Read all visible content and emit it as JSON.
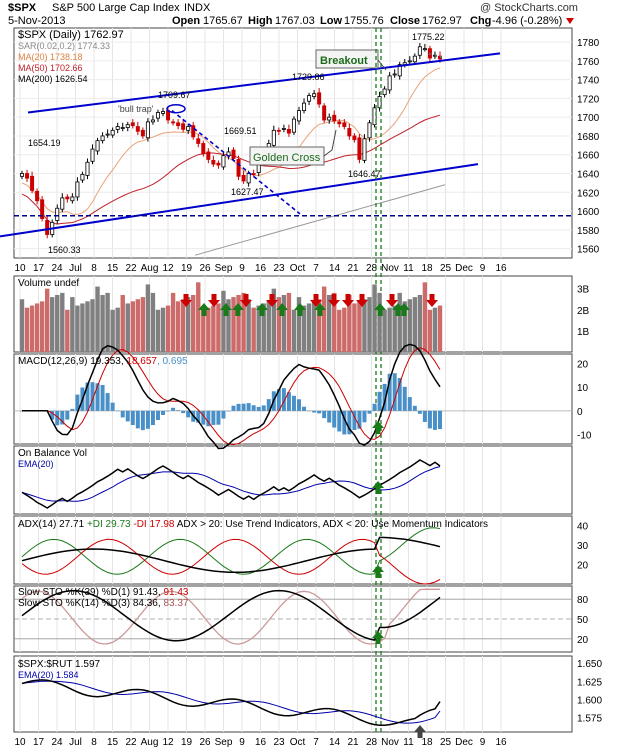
{
  "header": {
    "symbol": "$SPX",
    "name": "S&P 500 Large Cap Index",
    "exchange": "INDX",
    "date": "5-Nov-2013",
    "open_label": "Open",
    "open": "1765.67",
    "high_label": "High",
    "high": "1767.03",
    "low_label": "Low",
    "low": "1755.76",
    "close_label": "Close",
    "close": "1762.97",
    "chg_label": "Chg",
    "chg": "-4.96 (-0.28%)",
    "watermark": "@ StockCharts.com"
  },
  "legend": {
    "main": "$SPX (Daily) 1762.97",
    "sar": "SAR(0.02,0.2) 1774.33",
    "ma20": "MA(20) 1738.18",
    "ma50": "MA(50) 1702.66",
    "ma200": "MA(200) 1626.54",
    "volume": "Volume undef",
    "macd_a": "MACD(12,26,9) 19.353, ",
    "macd_b": "18.657",
    "macd_c": ", 0.695",
    "obv": "On Balance Vol",
    "obv_ema": "EMA(20)",
    "adx_a": "ADX(14) 27.71 ",
    "adx_b": "+DI 29.73 ",
    "adx_c": "-DI 17.98",
    "adx_d": " ADX > 20: Use Trend Indicators, ADX < 20: Use Momentum Indicators",
    "sto1_a": "Slow STO %K(39) %D(1) 91.43, ",
    "sto1_b": "91.43",
    "sto2_a": "Slow STO %K(14) %D(3) 84.36, ",
    "sto2_b": "83.37",
    "ratio": "$SPX:$RUT 1.597",
    "ratio_ema": "EMA(20) 1.584"
  },
  "annotations": {
    "breakout": "Breakout",
    "golden_cross": "Golden Cross",
    "bull_trap": "'bull trap'"
  },
  "colors": {
    "up": "#000000",
    "down": "#cc0000",
    "trend": "#0000cc",
    "ma20": "#e8a27a",
    "ma50": "#c0202a",
    "ma200": "#999999",
    "hist": "#4a90c8",
    "arrow_green": "#1a7a1a",
    "arrow_red": "#cc0000",
    "vol_up": "#808080",
    "vol_down": "#cd6b6b"
  },
  "chart_data": {
    "type": "candlestick",
    "x_ticks": [
      "10",
      "17",
      "24",
      "Jul",
      "8",
      "15",
      "22",
      "Aug",
      "12",
      "19",
      "26",
      "Sep",
      "9",
      "16",
      "23",
      "Oct",
      "7",
      "14",
      "21",
      "28",
      "Nov",
      "11",
      "18",
      "25",
      "Dec",
      "9",
      "16"
    ],
    "price_axis": [
      "1780",
      "1760",
      "1740",
      "1720",
      "1700",
      "1680",
      "1660",
      "1640",
      "1620",
      "1600",
      "1580",
      "1560"
    ],
    "price_range": [
      1550,
      1795
    ],
    "price_labels": [
      "1654.19",
      "1560.33",
      "1709.67",
      "1669.51",
      "1627.47",
      "1729.86",
      "1646.47",
      "1775.22"
    ],
    "support_level": 1595,
    "closes": [
      1640,
      1635,
      1622,
      1611,
      1592,
      1575,
      1588,
      1603,
      1614,
      1613,
      1615,
      1631,
      1639,
      1652,
      1666,
      1675,
      1680,
      1682,
      1686,
      1690,
      1689,
      1692,
      1691,
      1685,
      1680,
      1695,
      1697,
      1705,
      1706,
      1697,
      1694,
      1691,
      1687,
      1690,
      1679,
      1672,
      1661,
      1655,
      1650,
      1649,
      1659,
      1663,
      1656,
      1637,
      1632,
      1640,
      1639,
      1654,
      1665,
      1672,
      1686,
      1685,
      1688,
      1683,
      1698,
      1707,
      1715,
      1723,
      1725,
      1714,
      1697,
      1700,
      1696,
      1693,
      1690,
      1680,
      1676,
      1655,
      1677,
      1694,
      1710,
      1722,
      1730,
      1744,
      1746,
      1756,
      1758,
      1760,
      1765,
      1775,
      1773,
      1763,
      1766,
      1762
    ],
    "volume_axis": [
      "3B",
      "2B",
      "1B"
    ],
    "macd_axis": [
      "20",
      "10",
      "0",
      "-10"
    ],
    "adx_axis": [
      "40",
      "30",
      "20"
    ],
    "sto_axis": [
      "80",
      "50",
      "20"
    ],
    "ratio_axis": [
      "1.650",
      "1.625",
      "1.600",
      "1.575"
    ],
    "ratio_last": 1.597,
    "ratio_ema_last": 1.584
  }
}
